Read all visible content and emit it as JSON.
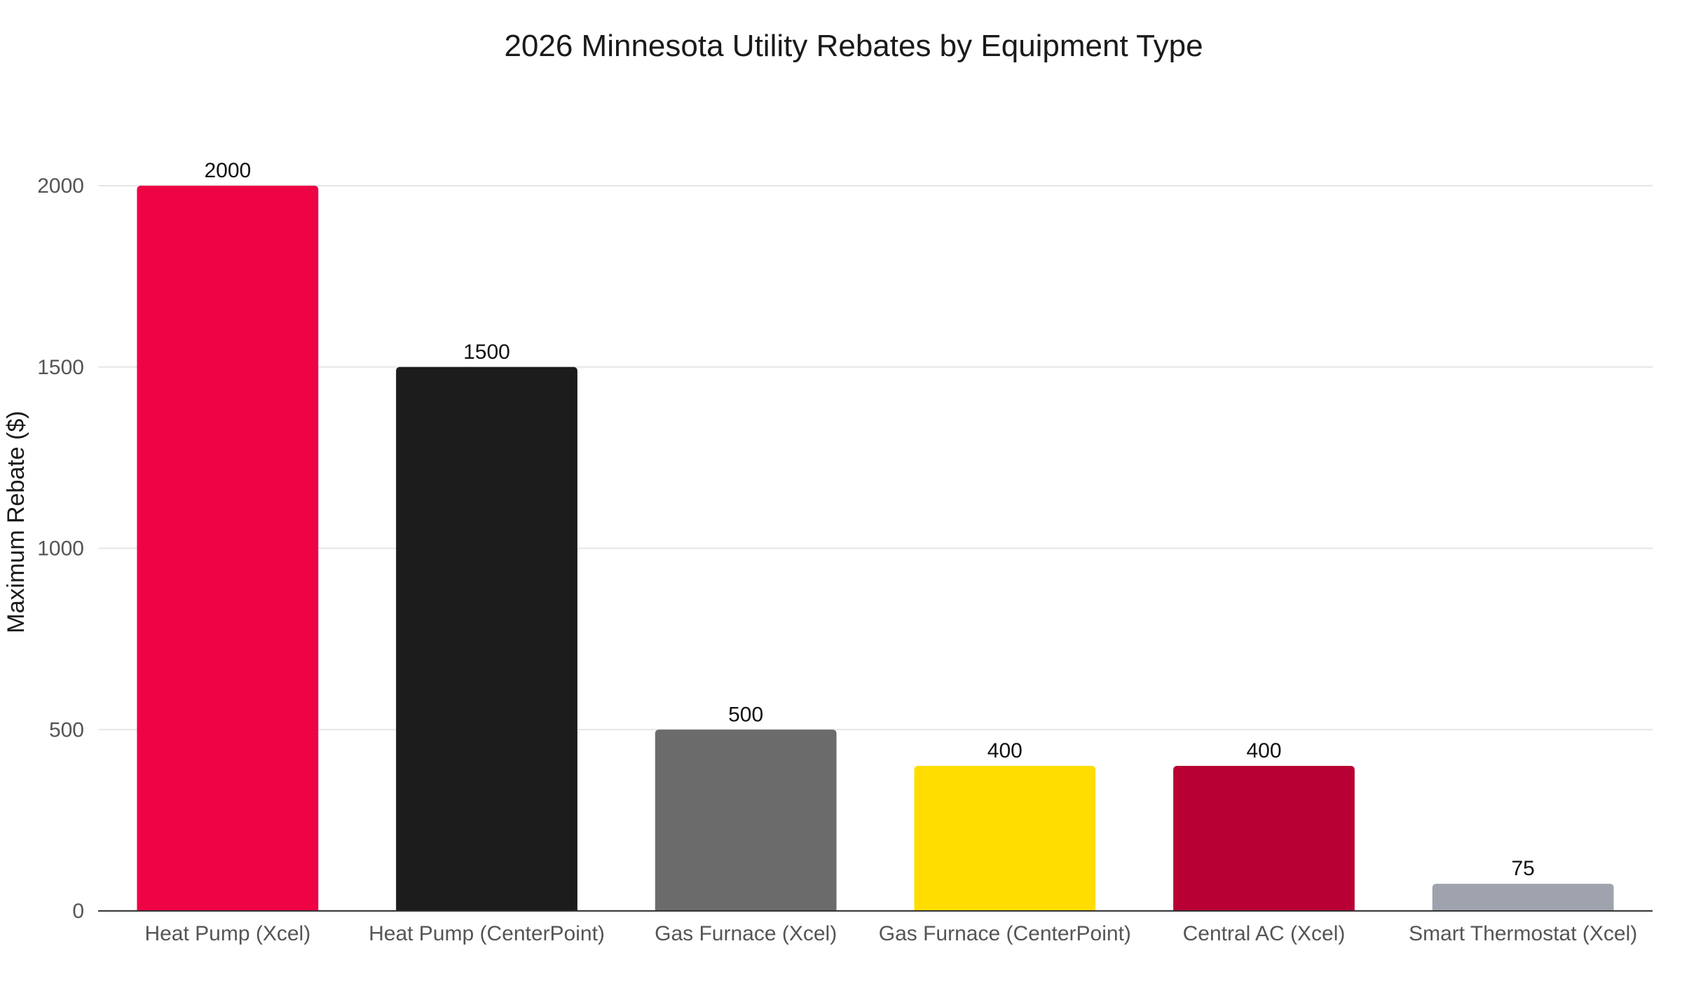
{
  "chart_data": {
    "type": "bar",
    "title": "2026 Minnesota Utility Rebates by Equipment Type",
    "xlabel": "",
    "ylabel": "Maximum Rebate ($)",
    "ylim": [
      0,
      2000
    ],
    "yticks": [
      0,
      500,
      1000,
      1500,
      2000
    ],
    "grid": true,
    "legend": "none",
    "categories": [
      "Heat Pump (Xcel)",
      "Heat Pump (CenterPoint)",
      "Gas Furnace (Xcel)",
      "Gas Furnace (CenterPoint)",
      "Central AC (Xcel)",
      "Smart Thermostat (Xcel)"
    ],
    "values": [
      2000,
      1500,
      500,
      400,
      400,
      75
    ],
    "colors": [
      "#EE0345",
      "#1C1C1C",
      "#6B6B6B",
      "#FFDD00",
      "#B80034",
      "#9EA3AE"
    ],
    "data_labels": [
      "2000",
      "1500",
      "500",
      "400",
      "400",
      "75"
    ]
  }
}
